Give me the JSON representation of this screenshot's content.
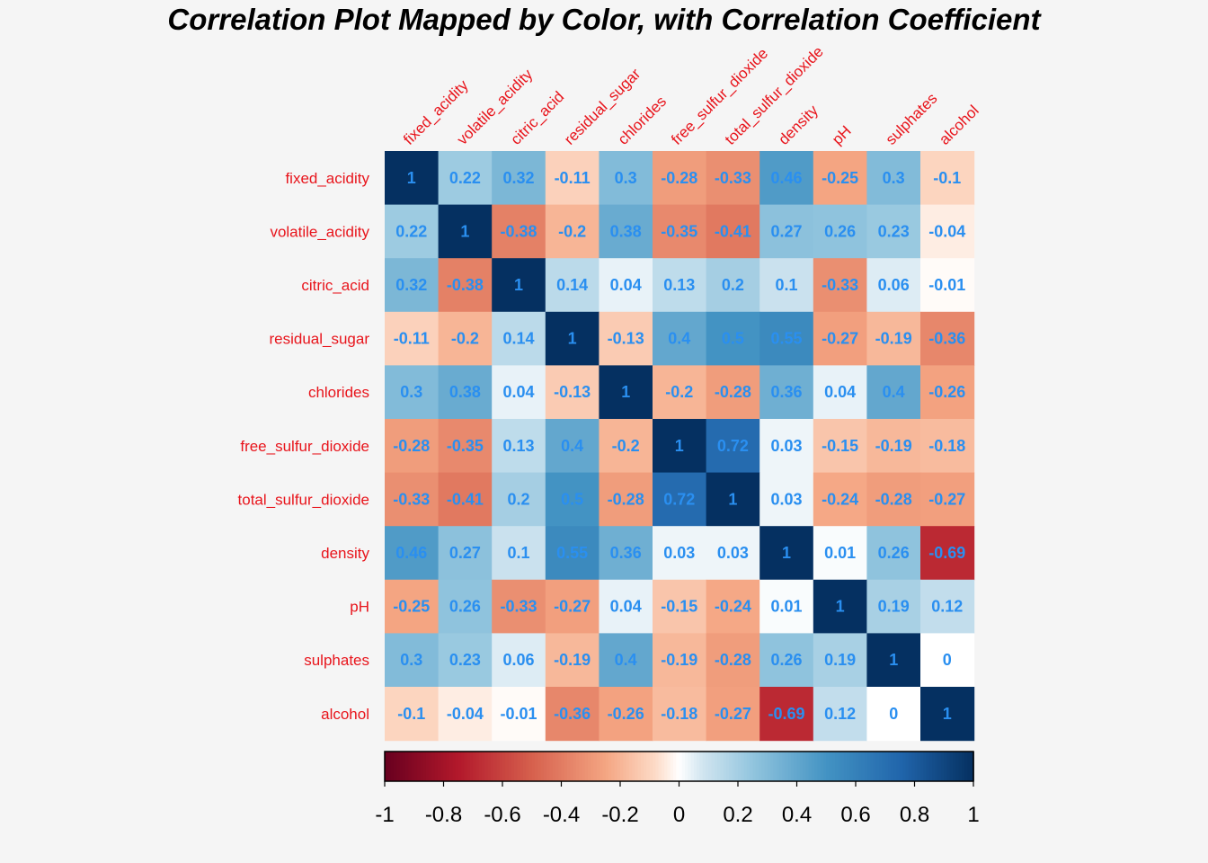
{
  "chart_data": {
    "type": "heatmap",
    "title": "Correlation Plot Mapped by Color, with Correlation Coefficient",
    "variables": [
      "fixed_acidity",
      "volatile_acidity",
      "citric_acid",
      "residual_sugar",
      "chlorides",
      "free_sulfur_dioxide",
      "total_sulfur_dioxide",
      "density",
      "pH",
      "sulphates",
      "alcohol"
    ],
    "matrix": [
      [
        1,
        0.22,
        0.32,
        -0.11,
        0.3,
        -0.28,
        -0.33,
        0.46,
        -0.25,
        0.3,
        -0.1
      ],
      [
        0.22,
        1,
        -0.38,
        -0.2,
        0.38,
        -0.35,
        -0.41,
        0.27,
        0.26,
        0.23,
        -0.04
      ],
      [
        0.32,
        -0.38,
        1,
        0.14,
        0.04,
        0.13,
        0.2,
        0.1,
        -0.33,
        0.06,
        -0.01
      ],
      [
        -0.11,
        -0.2,
        0.14,
        1,
        -0.13,
        0.4,
        0.5,
        0.55,
        -0.27,
        -0.19,
        -0.36
      ],
      [
        0.3,
        0.38,
        0.04,
        -0.13,
        1,
        -0.2,
        -0.28,
        0.36,
        0.04,
        0.4,
        -0.26
      ],
      [
        -0.28,
        -0.35,
        0.13,
        0.4,
        -0.2,
        1,
        0.72,
        0.03,
        -0.15,
        -0.19,
        -0.18
      ],
      [
        -0.33,
        -0.41,
        0.2,
        0.5,
        -0.28,
        0.72,
        1,
        0.03,
        -0.24,
        -0.28,
        -0.27
      ],
      [
        0.46,
        0.27,
        0.1,
        0.55,
        0.36,
        0.03,
        0.03,
        1,
        0.01,
        0.26,
        -0.69
      ],
      [
        -0.25,
        0.26,
        -0.33,
        -0.27,
        0.04,
        -0.15,
        -0.24,
        0.01,
        1,
        0.19,
        0.12
      ],
      [
        0.3,
        0.23,
        0.06,
        -0.19,
        0.4,
        -0.19,
        -0.28,
        0.26,
        0.19,
        1,
        0
      ],
      [
        -0.1,
        -0.04,
        -0.01,
        -0.36,
        -0.26,
        -0.18,
        -0.27,
        -0.69,
        0.12,
        0,
        1
      ]
    ],
    "colorbar": {
      "range": [
        -1,
        1
      ],
      "ticks": [
        "-1",
        "-0.8",
        "-0.6",
        "-0.4",
        "-0.2",
        "0",
        "0.2",
        "0.4",
        "0.6",
        "0.8",
        "1"
      ]
    },
    "colors": {
      "negative_end": "#67001f",
      "neutral": "#ffffff",
      "positive_end": "#053061",
      "label_color": "#e8141b",
      "value_text": "#2a8ff0"
    }
  }
}
